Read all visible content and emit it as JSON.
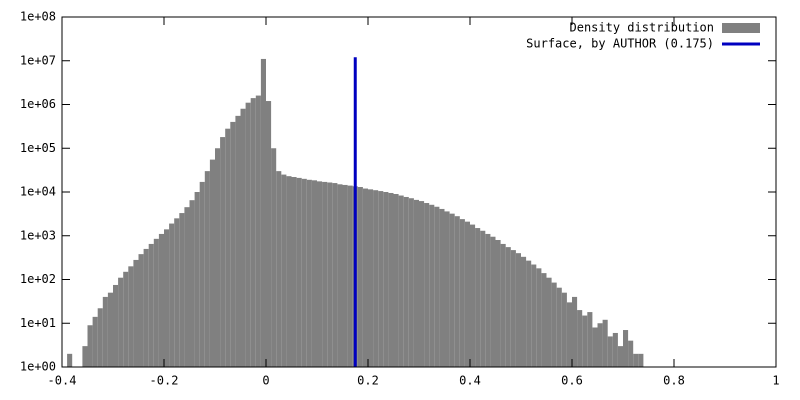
{
  "chart_data": {
    "type": "histogram",
    "name": "Density distribution",
    "color": "#808080",
    "bins": [
      -0.39,
      -0.38,
      -0.37,
      -0.36,
      -0.35,
      -0.34,
      -0.33,
      -0.32,
      -0.31,
      -0.3,
      -0.29,
      -0.28,
      -0.27,
      -0.26,
      -0.25,
      -0.24,
      -0.23,
      -0.22,
      -0.21,
      -0.2,
      -0.19,
      -0.18,
      -0.17,
      -0.16,
      -0.15,
      -0.14,
      -0.13,
      -0.12,
      -0.11,
      -0.1,
      -0.09,
      -0.08,
      -0.07,
      -0.06,
      -0.05,
      -0.04,
      -0.03,
      -0.02,
      -0.01,
      0.0,
      0.01,
      0.02,
      0.03,
      0.04,
      0.05,
      0.06,
      0.07,
      0.08,
      0.09,
      0.1,
      0.11,
      0.12,
      0.13,
      0.14,
      0.15,
      0.16,
      0.17,
      0.18,
      0.19,
      0.2,
      0.21,
      0.22,
      0.23,
      0.24,
      0.25,
      0.26,
      0.27,
      0.28,
      0.29,
      0.3,
      0.31,
      0.32,
      0.33,
      0.34,
      0.35,
      0.36,
      0.37,
      0.38,
      0.39,
      0.4,
      0.41,
      0.42,
      0.43,
      0.44,
      0.45,
      0.46,
      0.47,
      0.48,
      0.49,
      0.5,
      0.51,
      0.52,
      0.53,
      0.54,
      0.55,
      0.56,
      0.57,
      0.58,
      0.59,
      0.6,
      0.61,
      0.62,
      0.63,
      0.64,
      0.65,
      0.66,
      0.67,
      0.68,
      0.69,
      0.7,
      0.71,
      0.72,
      0.73,
      0.74
    ],
    "counts": [
      2,
      0,
      0,
      3,
      9,
      14,
      22,
      40,
      50,
      75,
      110,
      150,
      200,
      280,
      380,
      500,
      650,
      850,
      1100,
      1400,
      1900,
      2500,
      3300,
      4500,
      6500,
      10000,
      17000,
      30000,
      55000,
      100000,
      180000,
      280000,
      400000,
      550000,
      800000,
      1100000,
      1400000,
      1600000,
      11000000,
      1200000,
      100000,
      30000,
      25000,
      23000,
      22000,
      21000,
      20000,
      19000,
      18500,
      17500,
      17000,
      16500,
      16000,
      15000,
      14500,
      14000,
      13500,
      13000,
      12000,
      11500,
      11000,
      10500,
      10000,
      9500,
      9000,
      8300,
      7700,
      7200,
      6600,
      6200,
      5600,
      5100,
      4600,
      4100,
      3600,
      3200,
      2800,
      2400,
      2100,
      1800,
      1500,
      1300,
      1100,
      950,
      800,
      650,
      550,
      470,
      400,
      330,
      270,
      220,
      180,
      140,
      110,
      85,
      65,
      50,
      30,
      40,
      20,
      15,
      18,
      8,
      10,
      12,
      5,
      6,
      3,
      7,
      4,
      2,
      2
    ],
    "lines": [
      {
        "name": "Surface, by AUTHOR (0.175)",
        "color": "#0000c0",
        "x": [
          0.175,
          0.175
        ],
        "y": [
          1,
          12000000
        ]
      }
    ],
    "log_y": true,
    "legend": "top-right",
    "xlim": [
      -0.4,
      1
    ],
    "ylim": [
      1,
      100000000
    ],
    "xticks": [
      -0.4,
      -0.2,
      0,
      0.2,
      0.4,
      0.6,
      0.8,
      1
    ],
    "yticks": [
      {
        "value": 1,
        "label": "1e+00"
      },
      {
        "value": 10,
        "label": "1e+01"
      },
      {
        "value": 100,
        "label": "1e+02"
      },
      {
        "value": 1000,
        "label": "1e+03"
      },
      {
        "value": 10000,
        "label": "1e+04"
      },
      {
        "value": 100000,
        "label": "1e+05"
      },
      {
        "value": 1000000,
        "label": "1e+06"
      },
      {
        "value": 10000000,
        "label": "1e+07"
      },
      {
        "value": 100000000,
        "label": "1e+08"
      }
    ]
  }
}
